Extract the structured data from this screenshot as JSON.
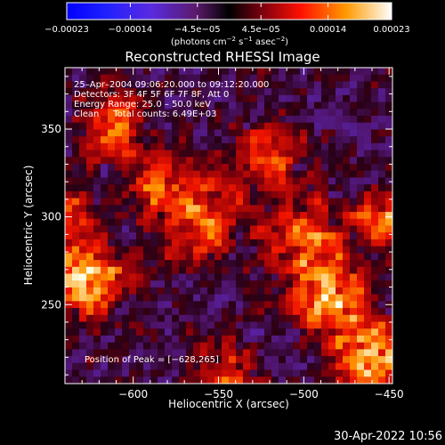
{
  "chart_data": {
    "type": "heatmap",
    "title": "Reconstructed RHESSI Image",
    "xlabel": "Heliocentric X (arcsec)",
    "ylabel": "Heliocentric Y (arcsec)",
    "xlim": [
      -640,
      -448
    ],
    "ylim": [
      205,
      385
    ],
    "x_ticks": [
      -600,
      -550,
      -500,
      -450
    ],
    "x_tick_labels": [
      "−600",
      "−550",
      "−500",
      "−450"
    ],
    "y_ticks": [
      250,
      300,
      350
    ],
    "y_tick_labels": [
      "250",
      "300",
      "350"
    ],
    "colorbar": {
      "range": [
        -0.00023,
        0.00023
      ],
      "ticks": [
        -0.00023,
        -0.00014,
        -4.5e-05,
        4.5e-05,
        0.00014,
        0.00023
      ],
      "tick_labels": [
        "−0.00023",
        "−0.00014",
        "−4.5e−05",
        "4.5e−05",
        "0.00014",
        "0.00023"
      ],
      "label_main": "(photons cm",
      "label_exp1": "−2",
      "label_mid": " s",
      "label_exp2": "−1",
      "label_end": " asec",
      "label_exp3": "−2",
      "label_close": ")"
    },
    "annotations": {
      "time": "25–Apr–2004 09:06:20.000 to 09:12:20.000",
      "detectors": "Detectors: 3F 4F 5F 6F 7F 8F, Att 0",
      "energy": "Energy Range: 25.0 – 50.0 keV",
      "clean": "Clean     Total counts: 6.49E+03",
      "peak": "Position of Peak = [−628,265]"
    },
    "sources": [
      {
        "x": -628,
        "y": 265,
        "sigma": 14,
        "amp": 0.00023
      },
      {
        "x": -612,
        "y": 352,
        "sigma": 12,
        "amp": 0.00016
      },
      {
        "x": -560,
        "y": 300,
        "sigma": 16,
        "amp": 0.00015
      },
      {
        "x": -520,
        "y": 335,
        "sigma": 12,
        "amp": 0.00012
      },
      {
        "x": -500,
        "y": 290,
        "sigma": 14,
        "amp": 0.00015
      },
      {
        "x": -485,
        "y": 255,
        "sigma": 14,
        "amp": 0.0002
      },
      {
        "x": -460,
        "y": 220,
        "sigma": 14,
        "amp": 0.0002
      },
      {
        "x": -545,
        "y": 210,
        "sigma": 12,
        "amp": 0.00012
      },
      {
        "x": -455,
        "y": 300,
        "sigma": 10,
        "amp": 0.00014
      },
      {
        "x": -590,
        "y": 318,
        "sigma": 10,
        "amp": 0.00012
      },
      {
        "x": -640,
        "y": 305,
        "sigma": 10,
        "amp": 0.0001
      }
    ]
  },
  "footer": {
    "timestamp": "30-Apr-2022 10:56"
  }
}
